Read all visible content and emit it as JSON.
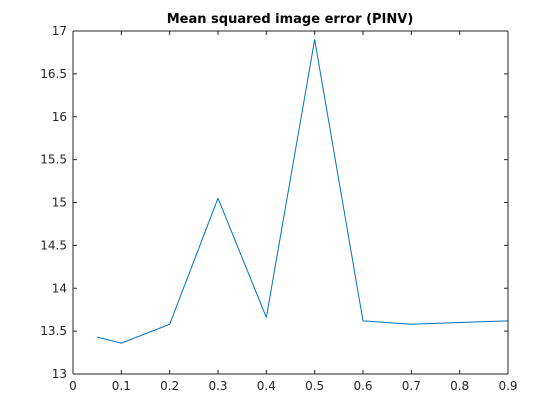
{
  "chart_data": {
    "type": "line",
    "title": "Mean squared image error (PINV)",
    "xlabel": "",
    "ylabel": "",
    "xlim": [
      0,
      0.9
    ],
    "ylim": [
      13,
      17
    ],
    "xticks": [
      "0",
      "0.1",
      "0.2",
      "0.3",
      "0.4",
      "0.5",
      "0.6",
      "0.7",
      "0.8",
      "0.9"
    ],
    "yticks": [
      "13",
      "13.5",
      "14",
      "14.5",
      "15",
      "15.5",
      "16",
      "16.5",
      "17"
    ],
    "grid": false,
    "series": [
      {
        "color": "#0072bd",
        "x": [
          0.05,
          0.1,
          0.2,
          0.3,
          0.4,
          0.5,
          0.6,
          0.7,
          0.8,
          0.9
        ],
        "y": [
          13.43,
          13.36,
          13.58,
          15.05,
          13.66,
          16.9,
          13.62,
          13.58,
          13.6,
          13.62
        ]
      }
    ]
  }
}
